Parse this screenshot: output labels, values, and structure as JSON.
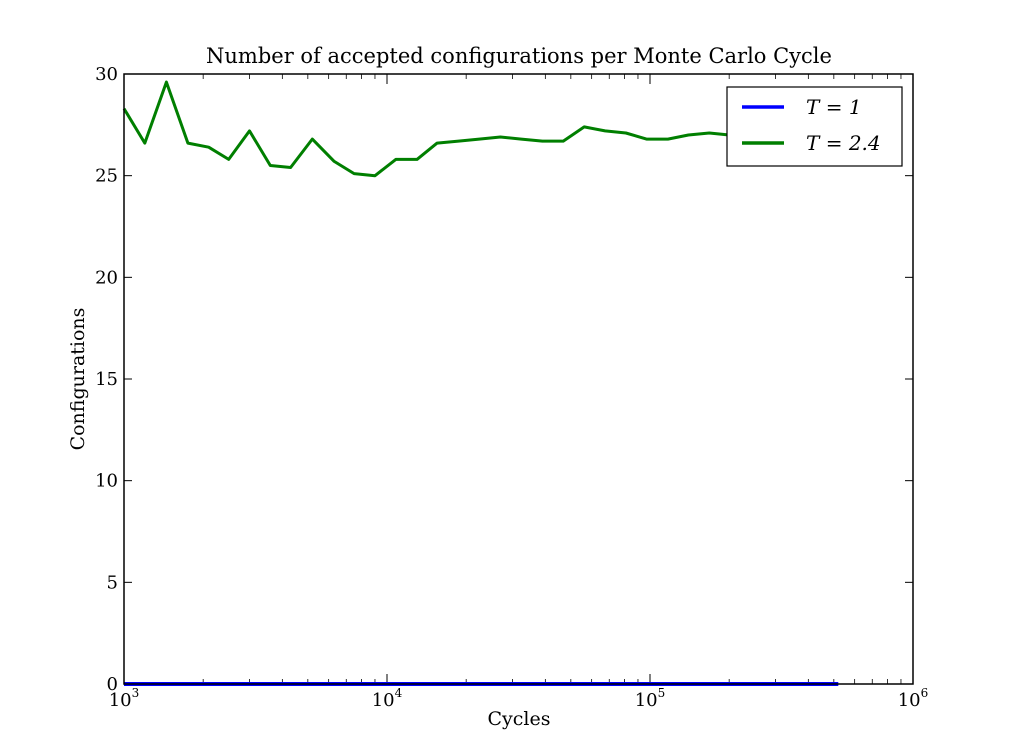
{
  "chart_data": {
    "type": "line",
    "title": "Number of accepted configurations per Monte Carlo Cycle",
    "xlabel": "Cycles",
    "ylabel": "Configurations",
    "xscale": "log",
    "xlim": [
      1000,
      1000000
    ],
    "ylim": [
      0,
      30
    ],
    "xticks": [
      {
        "value": 1000,
        "base": "10",
        "exp": "3"
      },
      {
        "value": 10000,
        "base": "10",
        "exp": "4"
      },
      {
        "value": 100000,
        "base": "10",
        "exp": "5"
      },
      {
        "value": 1000000,
        "base": "10",
        "exp": "6"
      }
    ],
    "yticks": [
      0,
      5,
      10,
      15,
      20,
      25,
      30
    ],
    "grid": false,
    "legend_position": "top-right",
    "series": [
      {
        "name": "T = 1",
        "color": "#0000ff",
        "x": [
          1000,
          520000
        ],
        "y": [
          0,
          0
        ]
      },
      {
        "name": "T = 2.4",
        "color": "#007f00",
        "x": [
          1000,
          1200,
          1450,
          1750,
          2100,
          2500,
          3000,
          3600,
          4300,
          5200,
          6300,
          7500,
          9000,
          10800,
          13000,
          15500,
          18700,
          22400,
          27000,
          32400,
          39000,
          46800,
          56200,
          67500,
          81000,
          97000,
          117000,
          140000,
          168000,
          200000,
          240000,
          290000,
          350000,
          420000,
          520000
        ],
        "y": [
          28.3,
          26.6,
          29.6,
          26.6,
          26.4,
          25.8,
          27.2,
          25.5,
          25.4,
          26.8,
          25.7,
          25.1,
          25.0,
          25.8,
          25.8,
          26.6,
          26.7,
          26.8,
          26.9,
          26.8,
          26.7,
          26.7,
          27.4,
          27.2,
          27.1,
          26.8,
          26.8,
          27.0,
          27.1,
          27.0,
          27.0,
          27.0,
          27.1,
          27.0,
          27.0
        ]
      }
    ]
  }
}
